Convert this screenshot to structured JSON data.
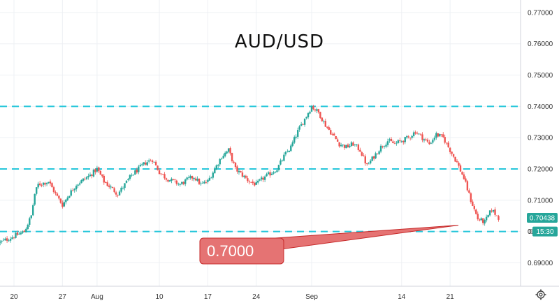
{
  "chart_data": {
    "type": "candlestick",
    "title": "AUD/USD",
    "xlabel": "",
    "ylabel": "",
    "ylim": [
      0.6825,
      0.774
    ],
    "y_ticks": [
      "0.77000",
      "0.76000",
      "0.75000",
      "0.74000",
      "0.73000",
      "0.72000",
      "0.71000",
      "0.70000",
      "0.69000"
    ],
    "y_tick_values": [
      0.77,
      0.76,
      0.75,
      0.74,
      0.73,
      0.72,
      0.71,
      0.7,
      0.69
    ],
    "x_ticks": [
      "20",
      "27",
      "Aug",
      "10",
      "17",
      "24",
      "Sep",
      "14",
      "21"
    ],
    "x_tick_days": [
      0,
      7,
      12,
      21,
      28,
      35,
      43,
      56,
      63
    ],
    "levels": [
      0.74,
      0.72,
      0.7
    ],
    "annotation": {
      "text": "0.7000",
      "value": 0.7
    },
    "last_price": "0.70438",
    "last_price_value": 0.70438,
    "countdown": "15:30",
    "colors": {
      "up": "#26a69a",
      "down": "#ef5350",
      "level": "#26c6da",
      "callout_fill": "#e57373",
      "callout_stroke": "#c62828",
      "badge": "#26a69a",
      "badge_dark": "#1f3b57"
    },
    "anchors": [
      [
        -2,
        0.6965
      ],
      [
        0,
        0.6985
      ],
      [
        1.5,
        0.7
      ],
      [
        2.5,
        0.705
      ],
      [
        3,
        0.712
      ],
      [
        3.5,
        0.715
      ],
      [
        5,
        0.716
      ],
      [
        6,
        0.712
      ],
      [
        7,
        0.7085
      ],
      [
        8,
        0.712
      ],
      [
        9,
        0.715
      ],
      [
        10,
        0.7165
      ],
      [
        11,
        0.718
      ],
      [
        12,
        0.72
      ],
      [
        13,
        0.716
      ],
      [
        14,
        0.714
      ],
      [
        15,
        0.712
      ],
      [
        16,
        0.715
      ],
      [
        17,
        0.718
      ],
      [
        18,
        0.72
      ],
      [
        19,
        0.722
      ],
      [
        20,
        0.723
      ],
      [
        21,
        0.719
      ],
      [
        22,
        0.717
      ],
      [
        23,
        0.716
      ],
      [
        24,
        0.715
      ],
      [
        25,
        0.7165
      ],
      [
        26,
        0.7175
      ],
      [
        27,
        0.715
      ],
      [
        28,
        0.716
      ],
      [
        29,
        0.72
      ],
      [
        30,
        0.724
      ],
      [
        31,
        0.726
      ],
      [
        32,
        0.72
      ],
      [
        33,
        0.718
      ],
      [
        34,
        0.716
      ],
      [
        35,
        0.715
      ],
      [
        36,
        0.717
      ],
      [
        37,
        0.7185
      ],
      [
        38,
        0.72
      ],
      [
        39,
        0.724
      ],
      [
        40,
        0.727
      ],
      [
        41,
        0.732
      ],
      [
        42,
        0.736
      ],
      [
        43,
        0.74
      ],
      [
        44,
        0.738
      ],
      [
        45,
        0.734
      ],
      [
        46,
        0.731
      ],
      [
        47,
        0.728
      ],
      [
        48,
        0.727
      ],
      [
        49,
        0.728
      ],
      [
        50,
        0.726
      ],
      [
        51,
        0.721
      ],
      [
        52,
        0.724
      ],
      [
        53,
        0.727
      ],
      [
        54,
        0.729
      ],
      [
        55,
        0.728
      ],
      [
        56,
        0.729
      ],
      [
        57,
        0.73
      ],
      [
        58,
        0.732
      ],
      [
        59,
        0.73
      ],
      [
        60,
        0.728
      ],
      [
        61,
        0.731
      ],
      [
        62,
        0.73
      ],
      [
        63,
        0.726
      ],
      [
        64,
        0.722
      ],
      [
        65,
        0.717
      ],
      [
        66,
        0.71
      ],
      [
        67,
        0.704
      ],
      [
        68,
        0.703
      ],
      [
        69,
        0.707
      ],
      [
        70,
        0.7044
      ]
    ]
  }
}
